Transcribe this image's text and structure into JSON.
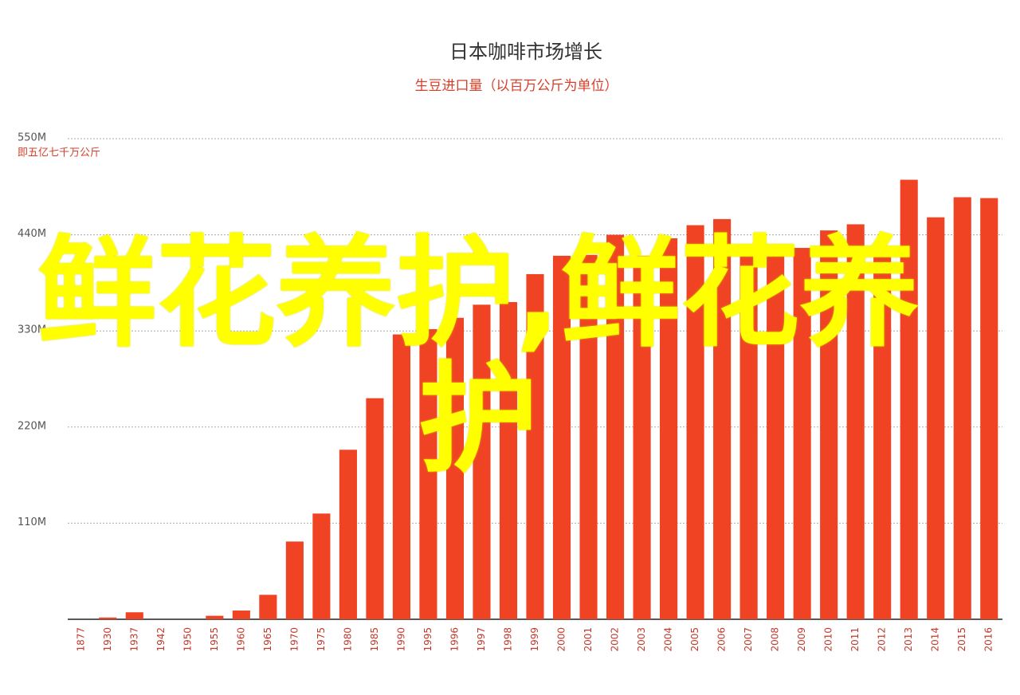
{
  "chart_data": {
    "type": "bar",
    "title": "日本咖啡市场增长",
    "subtitle": "生豆进口量（以百万公斤为单位）",
    "y_axis_note": "即五亿七千万公斤",
    "categories": [
      "1877",
      "1930",
      "1937",
      "1942",
      "1950",
      "1955",
      "1960",
      "1965",
      "1970",
      "1975",
      "1980",
      "1985",
      "1990",
      "1995",
      "1996",
      "1997",
      "1998",
      "1999",
      "2000",
      "2001",
      "2002",
      "2003",
      "2004",
      "2005",
      "2006",
      "2007",
      "2008",
      "2009",
      "2010",
      "2011",
      "2012",
      "2013",
      "2014",
      "2015",
      "2016"
    ],
    "values": [
      0,
      2,
      8,
      0,
      0,
      4,
      10,
      28,
      89,
      121,
      194,
      253,
      326,
      332,
      345,
      360,
      363,
      395,
      416,
      417,
      440,
      416,
      436,
      451,
      458,
      426,
      423,
      425,
      445,
      452,
      421,
      503,
      460,
      483,
      482
    ],
    "color": "#f04323",
    "ylim": [
      0,
      550
    ],
    "yticks": [
      {
        "value": 110,
        "label": "110M"
      },
      {
        "value": 220,
        "label": "220M"
      },
      {
        "value": 330,
        "label": "330M"
      },
      {
        "value": 440,
        "label": "440M"
      },
      {
        "value": 550,
        "label": "550M"
      }
    ],
    "grid": true
  },
  "watermark": "鲜花养护,鲜花养护"
}
